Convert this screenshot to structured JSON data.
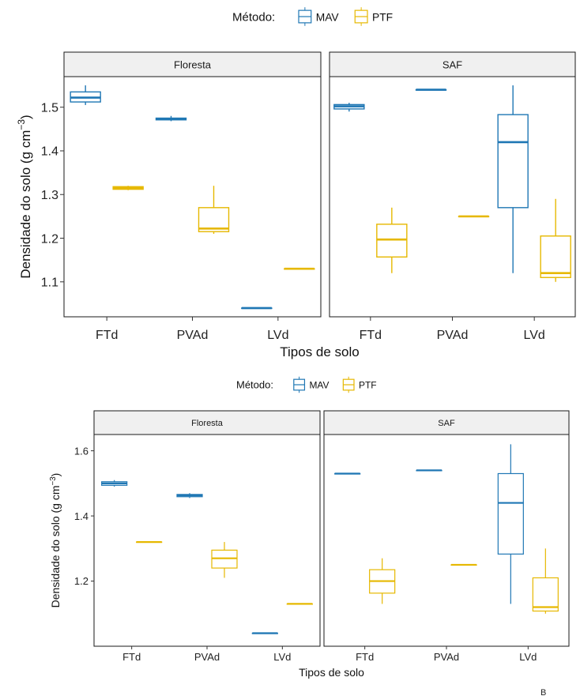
{
  "colors": {
    "MAV": "#1f77b4",
    "PTF": "#e6b800"
  },
  "panel_label": "B",
  "chart_data": [
    {
      "type": "box",
      "legend": {
        "title": "Método:",
        "items": [
          "MAV",
          "PTF"
        ],
        "placement": "top"
      },
      "facets": [
        {
          "label": "Floresta",
          "groups": [
            {
              "x": "FTd",
              "method": "MAV",
              "min": 1.505,
              "q1": 1.512,
              "median": 1.522,
              "q3": 1.535,
              "max": 1.55
            },
            {
              "x": "FTd",
              "method": "PTF",
              "min": 1.31,
              "q1": 1.312,
              "median": 1.315,
              "q3": 1.318,
              "max": 1.32
            },
            {
              "x": "PVAd",
              "method": "MAV",
              "min": 1.468,
              "q1": 1.471,
              "median": 1.473,
              "q3": 1.475,
              "max": 1.48
            },
            {
              "x": "PVAd",
              "method": "PTF",
              "min": 1.21,
              "q1": 1.215,
              "median": 1.222,
              "q3": 1.27,
              "max": 1.32
            },
            {
              "x": "LVd",
              "method": "MAV",
              "min": 1.04,
              "q1": 1.04,
              "median": 1.04,
              "q3": 1.04,
              "max": 1.04
            },
            {
              "x": "LVd",
              "method": "PTF",
              "min": 1.13,
              "q1": 1.13,
              "median": 1.13,
              "q3": 1.13,
              "max": 1.13
            }
          ]
        },
        {
          "label": "SAF",
          "groups": [
            {
              "x": "FTd",
              "method": "MAV",
              "min": 1.49,
              "q1": 1.496,
              "median": 1.502,
              "q3": 1.506,
              "max": 1.51
            },
            {
              "x": "FTd",
              "method": "PTF",
              "min": 1.12,
              "q1": 1.157,
              "median": 1.197,
              "q3": 1.232,
              "max": 1.27
            },
            {
              "x": "PVAd",
              "method": "MAV",
              "min": 1.54,
              "q1": 1.54,
              "median": 1.54,
              "q3": 1.54,
              "max": 1.54
            },
            {
              "x": "PVAd",
              "method": "PTF",
              "min": 1.25,
              "q1": 1.25,
              "median": 1.25,
              "q3": 1.25,
              "max": 1.25
            },
            {
              "x": "LVd",
              "method": "MAV",
              "min": 1.12,
              "q1": 1.27,
              "median": 1.42,
              "q3": 1.483,
              "max": 1.55
            },
            {
              "x": "LVd",
              "method": "PTF",
              "min": 1.1,
              "q1": 1.11,
              "median": 1.12,
              "q3": 1.205,
              "max": 1.29
            }
          ]
        }
      ],
      "categories": [
        "FTd",
        "PVAd",
        "LVd"
      ],
      "xlabel": "Tipos de solo",
      "ylabel": "Densidade do solo (g cm",
      "ylabel_sup": "−3",
      "ylabel_end": ")",
      "ylim": [
        1.02,
        1.57
      ],
      "yticks": [
        1.1,
        1.2,
        1.3,
        1.4,
        1.5
      ],
      "ytick_labels": [
        "1.1",
        "1.2",
        "1.3",
        "1.4",
        "1.5"
      ],
      "grid": false
    },
    {
      "type": "box",
      "legend": {
        "title": "Método:",
        "items": [
          "MAV",
          "PTF"
        ],
        "placement": "top"
      },
      "facets": [
        {
          "label": "Floresta",
          "groups": [
            {
              "x": "FTd",
              "method": "MAV",
              "min": 1.49,
              "q1": 1.494,
              "median": 1.5,
              "q3": 1.505,
              "max": 1.51
            },
            {
              "x": "FTd",
              "method": "PTF",
              "min": 1.32,
              "q1": 1.32,
              "median": 1.32,
              "q3": 1.32,
              "max": 1.32
            },
            {
              "x": "PVAd",
              "method": "MAV",
              "min": 1.455,
              "q1": 1.459,
              "median": 1.463,
              "q3": 1.466,
              "max": 1.47
            },
            {
              "x": "PVAd",
              "method": "PTF",
              "min": 1.21,
              "q1": 1.24,
              "median": 1.27,
              "q3": 1.295,
              "max": 1.32
            },
            {
              "x": "LVd",
              "method": "MAV",
              "min": 1.04,
              "q1": 1.04,
              "median": 1.04,
              "q3": 1.04,
              "max": 1.04
            },
            {
              "x": "LVd",
              "method": "PTF",
              "min": 1.13,
              "q1": 1.13,
              "median": 1.13,
              "q3": 1.13,
              "max": 1.13
            }
          ]
        },
        {
          "label": "SAF",
          "groups": [
            {
              "x": "FTd",
              "method": "MAV",
              "min": 1.53,
              "q1": 1.53,
              "median": 1.53,
              "q3": 1.53,
              "max": 1.53
            },
            {
              "x": "FTd",
              "method": "PTF",
              "min": 1.13,
              "q1": 1.163,
              "median": 1.2,
              "q3": 1.235,
              "max": 1.27
            },
            {
              "x": "PVAd",
              "method": "MAV",
              "min": 1.54,
              "q1": 1.54,
              "median": 1.54,
              "q3": 1.54,
              "max": 1.54
            },
            {
              "x": "PVAd",
              "method": "PTF",
              "min": 1.25,
              "q1": 1.25,
              "median": 1.25,
              "q3": 1.25,
              "max": 1.25
            },
            {
              "x": "LVd",
              "method": "MAV",
              "min": 1.13,
              "q1": 1.283,
              "median": 1.44,
              "q3": 1.53,
              "max": 1.62
            },
            {
              "x": "LVd",
              "method": "PTF",
              "min": 1.1,
              "q1": 1.108,
              "median": 1.12,
              "q3": 1.21,
              "max": 1.3
            }
          ]
        }
      ],
      "categories": [
        "FTd",
        "PVAd",
        "LVd"
      ],
      "xlabel": "Tipos de solo",
      "ylabel": "Densidade do solo (g cm",
      "ylabel_sup": "−3",
      "ylabel_end": ")",
      "ylim": [
        1.0,
        1.65
      ],
      "yticks": [
        1.2,
        1.4,
        1.6
      ],
      "ytick_labels": [
        "1.2",
        "1.4",
        "1.6"
      ],
      "grid": false
    }
  ]
}
